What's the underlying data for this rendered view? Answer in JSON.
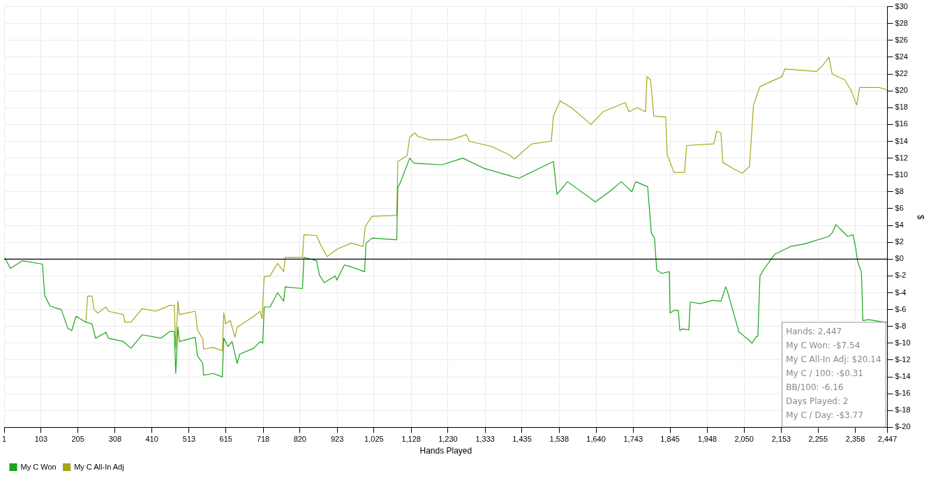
{
  "chart_data": {
    "type": "line",
    "xlabel": "Hands Played",
    "ylabel": "$",
    "xlim": [
      1,
      2447
    ],
    "ylim": [
      -20,
      30
    ],
    "xticks": [
      1,
      103,
      205,
      308,
      410,
      513,
      615,
      718,
      820,
      923,
      {
        "value": 1025,
        "label": "1,025"
      },
      {
        "value": 1128,
        "label": "1,128"
      },
      {
        "value": 1230,
        "label": "1,230"
      },
      {
        "value": 1333,
        "label": "1,333"
      },
      {
        "value": 1435,
        "label": "1,435"
      },
      {
        "value": 1538,
        "label": "1,538"
      },
      {
        "value": 1640,
        "label": "1,640"
      },
      {
        "value": 1743,
        "label": "1,743"
      },
      {
        "value": 1845,
        "label": "1,845"
      },
      {
        "value": 1948,
        "label": "1,948"
      },
      {
        "value": 2050,
        "label": "2,050"
      },
      {
        "value": 2153,
        "label": "2,153"
      },
      {
        "value": 2255,
        "label": "2,255"
      },
      {
        "value": 2358,
        "label": "2,358"
      },
      {
        "value": 2447,
        "label": "2,447"
      }
    ],
    "yticks": [
      {
        "value": -20,
        "label": "$-20"
      },
      {
        "value": -18,
        "label": "$-18"
      },
      {
        "value": -16,
        "label": "$-16"
      },
      {
        "value": -14,
        "label": "$-14"
      },
      {
        "value": -12,
        "label": "$-12"
      },
      {
        "value": -10,
        "label": "$-10"
      },
      {
        "value": -8,
        "label": "$-8"
      },
      {
        "value": -6,
        "label": "$-6"
      },
      {
        "value": -4,
        "label": "$-4"
      },
      {
        "value": -2,
        "label": "$-2"
      },
      {
        "value": 0,
        "label": "$0"
      },
      {
        "value": 2,
        "label": "$2"
      },
      {
        "value": 4,
        "label": "$4"
      },
      {
        "value": 6,
        "label": "$6"
      },
      {
        "value": 8,
        "label": "$8"
      },
      {
        "value": 10,
        "label": "$10"
      },
      {
        "value": 12,
        "label": "$12"
      },
      {
        "value": 14,
        "label": "$14"
      },
      {
        "value": 16,
        "label": "$16"
      },
      {
        "value": 18,
        "label": "$18"
      },
      {
        "value": 20,
        "label": "$20"
      },
      {
        "value": 22,
        "label": "$22"
      },
      {
        "value": 24,
        "label": "$24"
      },
      {
        "value": 26,
        "label": "$26"
      },
      {
        "value": 28,
        "label": "$28"
      },
      {
        "value": 30,
        "label": "$30"
      }
    ],
    "grid": true,
    "legend": "bottom",
    "marker": "none",
    "line_style": "solid",
    "ref_lines": [
      {
        "axis": "y",
        "value": 0,
        "color": "#000000"
      }
    ],
    "annotations": [
      "Hands: 2,447",
      "My C Won: -$7.54",
      "My C All-In Adj: $20.14",
      "My C / 100: -$0.31",
      "BB/100: -6.16",
      "Days Played: 2",
      "My C / Day: -$3.77"
    ],
    "series": [
      {
        "name": "My C Won",
        "color": "#1aa51a",
        "x": [
          1,
          3,
          18,
          51,
          107,
          113,
          128,
          159,
          177,
          188,
          200,
          227,
          244,
          254,
          283,
          289,
          331,
          352,
          383,
          435,
          460,
          472,
          476,
          482,
          486,
          530,
          536,
          551,
          553,
          580,
          605,
          609,
          621,
          632,
          646,
          653,
          692,
          710,
          717,
          721,
          737,
          758,
          775,
          779,
          827,
          831,
          866,
          874,
          887,
          918,
          922,
          943,
          960,
          999,
          1003,
          1020,
          1088,
          1091,
          1099,
          1124,
          1136,
          1213,
          1271,
          1329,
          1426,
          1445,
          1522,
          1532,
          1561,
          1638,
          1677,
          1710,
          1739,
          1750,
          1783,
          1793,
          1802,
          1808,
          1822,
          1843,
          1845,
          1856,
          1868,
          1872,
          1879,
          1897,
          1901,
          1928,
          1964,
          1986,
          1999,
          2003,
          2036,
          2040,
          2065,
          2072,
          2084,
          2088,
          2094,
          2105,
          2132,
          2136,
          2179,
          2217,
          2285,
          2294,
          2304,
          2337,
          2352,
          2360,
          2364,
          2375,
          2379,
          2395,
          2439,
          2447
        ],
        "values": [
          0,
          0.1,
          -1.1,
          -0.2,
          -0.6,
          -4.3,
          -5.6,
          -6,
          -8.2,
          -8.5,
          -6.8,
          -7.5,
          -7.7,
          -9.4,
          -8.7,
          -9.4,
          -9.8,
          -10.6,
          -9,
          -9.4,
          -8.6,
          -8.6,
          -13.6,
          -8.1,
          -9.8,
          -9.3,
          -11.5,
          -12.4,
          -13.8,
          -13.6,
          -14,
          -9.4,
          -10.4,
          -9.8,
          -12.4,
          -11.3,
          -10.6,
          -9.8,
          -10,
          -5.7,
          -5.7,
          -4,
          -5,
          -3.3,
          -3.5,
          0.2,
          -0.2,
          -1.9,
          -2.8,
          -2,
          -2.5,
          -0.7,
          -0.9,
          -1.5,
          1.9,
          2.5,
          2.3,
          8.5,
          9.2,
          12,
          11.4,
          11.2,
          12,
          10.8,
          9.6,
          10,
          11.6,
          7.7,
          9.2,
          6.8,
          8,
          9.2,
          8,
          9.2,
          8.6,
          3.1,
          2.5,
          -1.3,
          -1.7,
          -1.5,
          -6.4,
          -6.1,
          -6.1,
          -8.5,
          -8.3,
          -8.4,
          -5.1,
          -5.3,
          -4.9,
          -5,
          -3.3,
          -3.7,
          -8.7,
          -8.8,
          -9.7,
          -10,
          -9.2,
          -9.2,
          -2,
          -1.2,
          0.4,
          0.6,
          1.5,
          1.8,
          2.7,
          3.1,
          4.1,
          2.7,
          2.9,
          1.1,
          -0.2,
          -1.6,
          -7.3,
          -7.2,
          -7.5,
          -7.5
        ]
      },
      {
        "name": "My C All-In Adj",
        "color": "#a6a61a",
        "x": [
          227,
          232,
          244,
          250,
          260,
          283,
          289,
          331,
          335,
          352,
          383,
          420,
          460,
          472,
          476,
          482,
          486,
          530,
          536,
          551,
          553,
          580,
          605,
          609,
          614,
          627,
          640,
          646,
          692,
          710,
          715,
          721,
          737,
          758,
          775,
          779,
          827,
          831,
          866,
          876,
          895,
          924,
          962,
          995,
          1001,
          1020,
          1088,
          1091,
          1117,
          1124,
          1138,
          1146,
          1177,
          1240,
          1281,
          1289,
          1350,
          1399,
          1414,
          1462,
          1516,
          1522,
          1540,
          1572,
          1626,
          1659,
          1721,
          1731,
          1754,
          1777,
          1781,
          1791,
          1800,
          1833,
          1837,
          1856,
          1885,
          1891,
          1966,
          1974,
          1986,
          1991,
          2022,
          2045,
          2065,
          2076,
          2094,
          2155,
          2163,
          2250,
          2267,
          2285,
          2294,
          2329,
          2347,
          2362,
          2370,
          2424,
          2447
        ],
        "values": [
          -7.5,
          -4.4,
          -4.4,
          -6,
          -6.4,
          -5.7,
          -6.2,
          -6.6,
          -7.5,
          -7.5,
          -5.9,
          -6.2,
          -5.5,
          -5.5,
          -10.6,
          -5,
          -6.6,
          -6.2,
          -8.4,
          -9.5,
          -10.7,
          -10.5,
          -10.9,
          -6.4,
          -7.7,
          -7.3,
          -9.3,
          -8.1,
          -6.8,
          -6.2,
          -7.1,
          -2.1,
          -2,
          -0.5,
          -1.5,
          0.2,
          0.2,
          2.9,
          2.8,
          1.8,
          0.3,
          1.2,
          1.9,
          1.5,
          3.9,
          5.1,
          5.2,
          11.6,
          12.3,
          14.5,
          15,
          14.6,
          14.2,
          14.2,
          14.8,
          14,
          13.4,
          12.4,
          11.9,
          13.7,
          14,
          17,
          18.8,
          18,
          16,
          17.5,
          18.6,
          17.5,
          18,
          17.5,
          21.7,
          21.3,
          17,
          16.9,
          12.4,
          10.3,
          10.3,
          13.5,
          13.7,
          15.2,
          15,
          11.5,
          10.7,
          10.2,
          11,
          18.3,
          20.5,
          21.7,
          22.6,
          22.3,
          23,
          24,
          22,
          21.3,
          20,
          18.3,
          20.4,
          20.4,
          20.1
        ]
      }
    ]
  }
}
